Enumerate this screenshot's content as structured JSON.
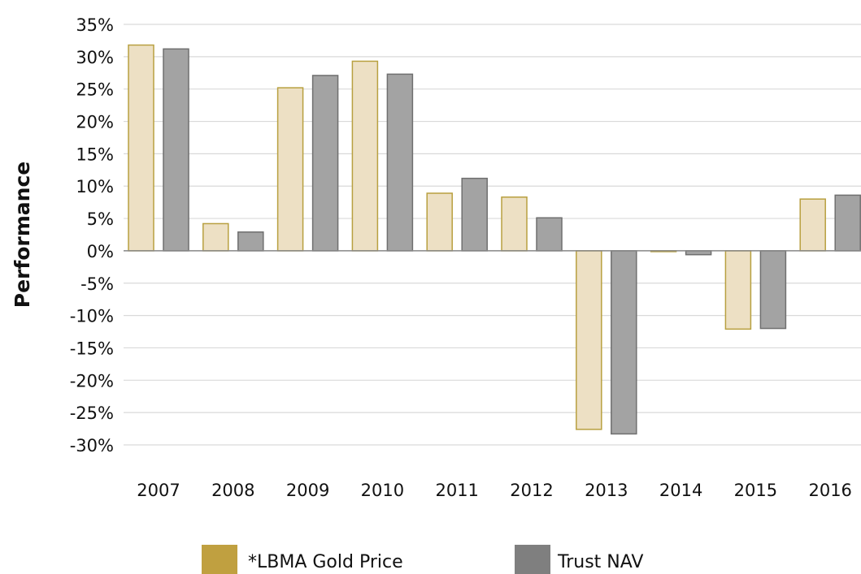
{
  "chart_data": {
    "type": "bar",
    "ylabel": "Performance",
    "xlabel": "",
    "categories": [
      "2007",
      "2008",
      "2009",
      "2010",
      "2011",
      "2012",
      "2013",
      "2014",
      "2015",
      "2016"
    ],
    "series": [
      {
        "name": "*LBMA Gold Price",
        "values": [
          31.8,
          4.2,
          25.2,
          29.3,
          8.9,
          8.3,
          -27.6,
          0.0,
          -12.1,
          8.0
        ],
        "fill": "#ede0c4",
        "stroke": "#b8a040",
        "legend_color": "#c0a040"
      },
      {
        "name": "Trust NAV",
        "values": [
          31.2,
          2.9,
          27.1,
          27.3,
          11.2,
          5.1,
          -28.3,
          -0.6,
          -12.0,
          8.6
        ],
        "fill": "#a3a3a3",
        "stroke": "#6f6f6f",
        "legend_color": "#7f7f7f"
      }
    ],
    "ylim": [
      -30,
      35
    ],
    "yticks": [
      35,
      30,
      25,
      20,
      15,
      10,
      5,
      0,
      -5,
      -10,
      -15,
      -20,
      -25,
      -30
    ],
    "ytick_labels": [
      "35%",
      "30%",
      "25%",
      "20%",
      "15%",
      "10%",
      "5%",
      "0%",
      "-5%",
      "-10%",
      "-15%",
      "-20%",
      "-25%",
      "-30%"
    ],
    "grid": true,
    "legend_position": "bottom-center"
  }
}
